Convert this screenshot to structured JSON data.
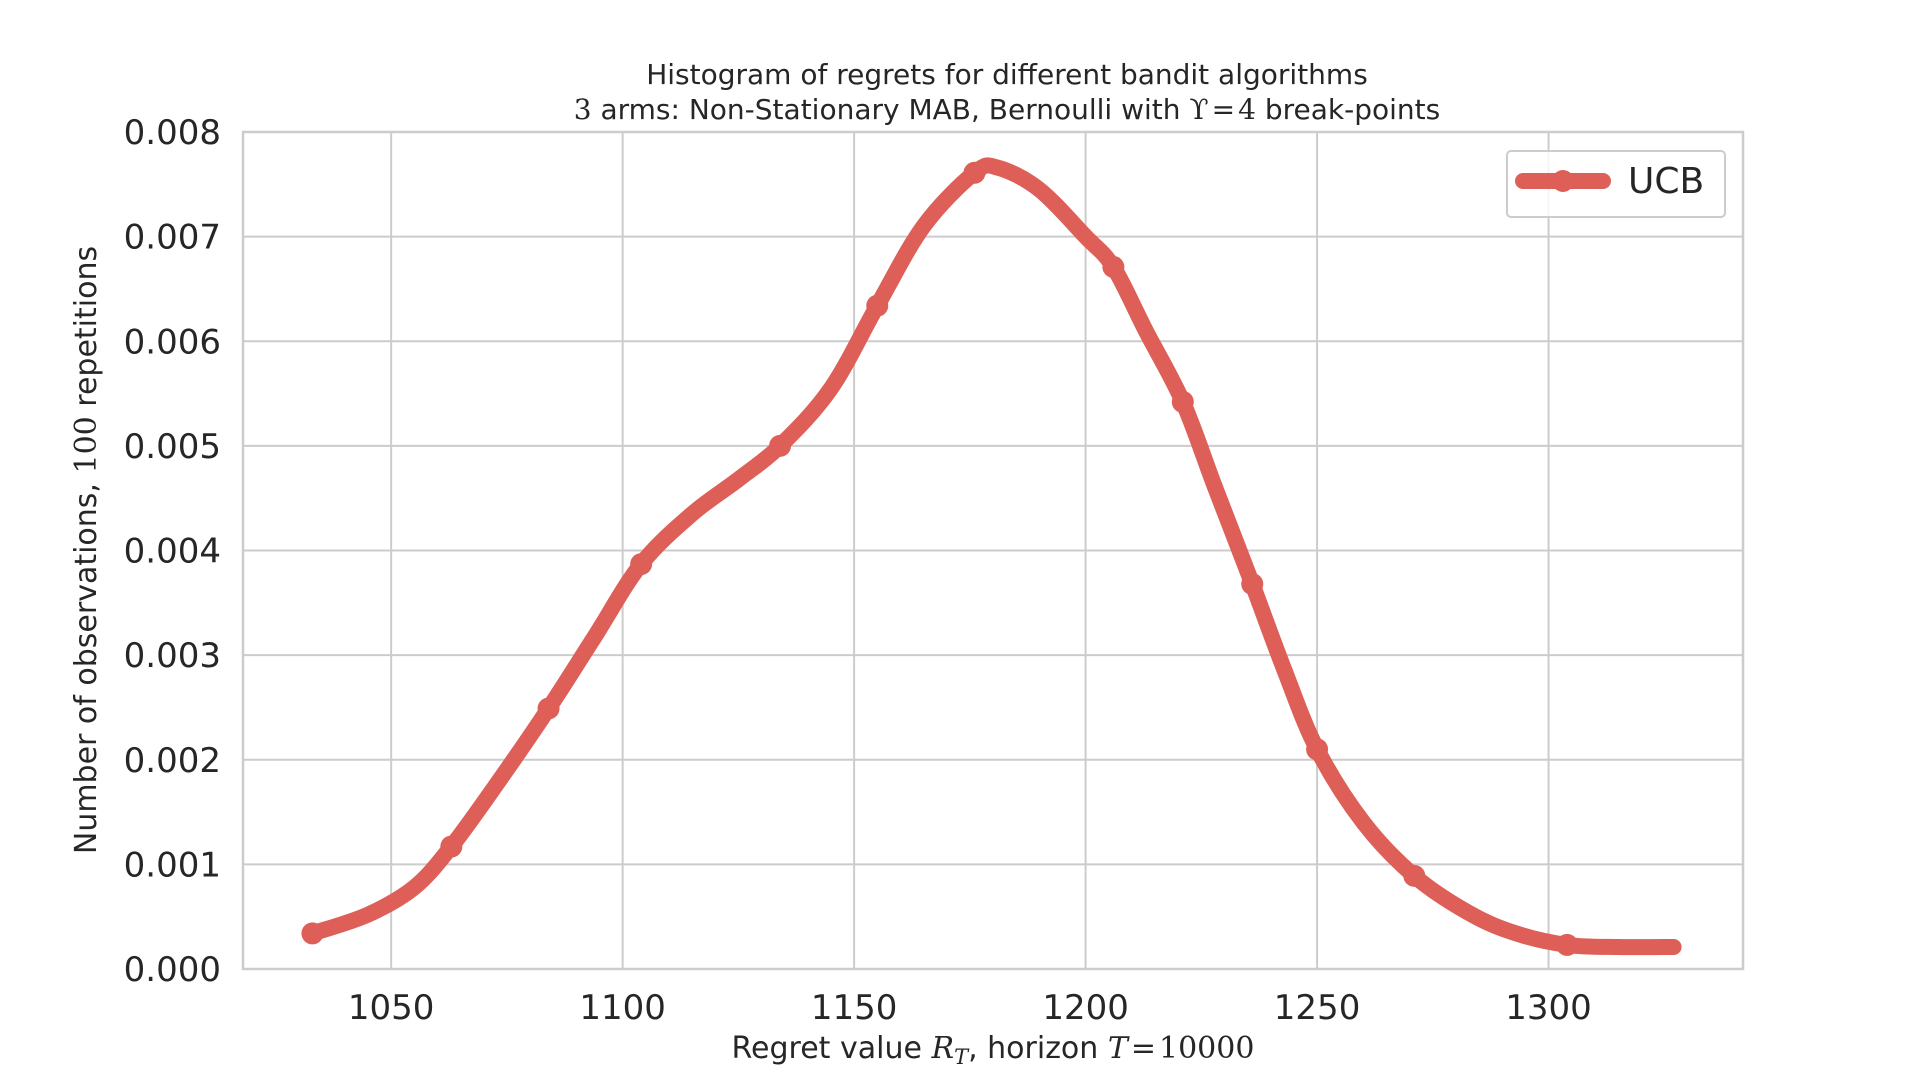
{
  "chart_data": {
    "type": "line",
    "title_line1": "Histogram of regrets for different bandit algorithms",
    "title_line2": {
      "arms_value": "3",
      "arms_text": " arms: Non-Stationary MAB, Bernoulli with ",
      "upsilon_symbol": "ϒ",
      "equals": "=",
      "breakpoints_value": "4",
      "breakpoints_text": " break-points"
    },
    "xlabel": {
      "prefix": "Regret value ",
      "symbol_main": "R",
      "symbol_sub": "T",
      "middle": ", horizon ",
      "horizon_symbol": "T",
      "equals": "=",
      "horizon_value": "10000"
    },
    "ylabel": {
      "prefix": "Number of observations, ",
      "repetitions_value": "100",
      "suffix": " repetitions"
    },
    "xlim": [
      1018,
      1342
    ],
    "ylim": [
      0,
      0.008
    ],
    "x_ticks": [
      "1050",
      "1100",
      "1150",
      "1200",
      "1250",
      "1300"
    ],
    "x_tick_values": [
      1050,
      1100,
      1150,
      1200,
      1250,
      1300
    ],
    "y_ticks": [
      "0.000",
      "0.001",
      "0.002",
      "0.003",
      "0.004",
      "0.005",
      "0.006",
      "0.007",
      "0.008"
    ],
    "y_tick_values": [
      0,
      0.001,
      0.002,
      0.003,
      0.004,
      0.005,
      0.006,
      0.007,
      0.008
    ],
    "grid": true,
    "legend_position": "top-right",
    "series": [
      {
        "name": "UCB",
        "color": "#dd5f57",
        "curve": [
          [
            1033,
            0.00034
          ],
          [
            1045,
            0.00052
          ],
          [
            1055,
            0.00078
          ],
          [
            1063,
            0.00117
          ],
          [
            1073,
            0.00178
          ],
          [
            1084,
            0.00249
          ],
          [
            1094,
            0.00318
          ],
          [
            1104,
            0.00387
          ],
          [
            1115,
            0.00435
          ],
          [
            1125,
            0.00468
          ],
          [
            1134,
            0.005
          ],
          [
            1145,
            0.00555
          ],
          [
            1155,
            0.00634
          ],
          [
            1165,
            0.0071
          ],
          [
            1176,
            0.00761
          ],
          [
            1181,
            0.00766
          ],
          [
            1190,
            0.00745
          ],
          [
            1200,
            0.007
          ],
          [
            1206,
            0.00671
          ],
          [
            1213,
            0.0061
          ],
          [
            1221,
            0.00542
          ],
          [
            1228,
            0.0046
          ],
          [
            1236,
            0.00368
          ],
          [
            1243,
            0.00285
          ],
          [
            1250,
            0.0021
          ],
          [
            1260,
            0.0014
          ],
          [
            1271,
            0.00089
          ],
          [
            1283,
            0.00053
          ],
          [
            1293,
            0.00034
          ],
          [
            1304,
            0.00023
          ],
          [
            1315,
            0.00021
          ],
          [
            1327,
            0.00021
          ]
        ],
        "markers": [
          [
            1033,
            0.00034
          ],
          [
            1063,
            0.00117
          ],
          [
            1084,
            0.00249
          ],
          [
            1104,
            0.00387
          ],
          [
            1134,
            0.005
          ],
          [
            1155,
            0.00634
          ],
          [
            1176,
            0.00761
          ],
          [
            1206,
            0.00671
          ],
          [
            1221,
            0.00542
          ],
          [
            1236,
            0.00368
          ],
          [
            1250,
            0.0021
          ],
          [
            1271,
            0.00089
          ],
          [
            1304,
            0.00023
          ]
        ]
      }
    ]
  }
}
